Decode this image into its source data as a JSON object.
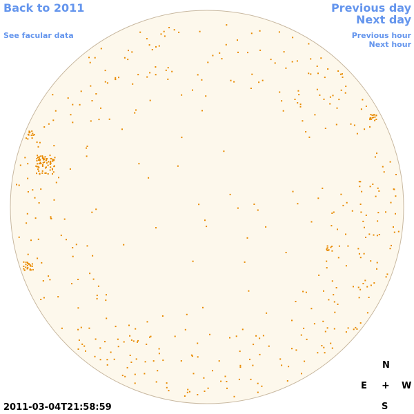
{
  "nav": {
    "back": "Back to 2011",
    "facular": "See facular data",
    "previous_day": "Previous day",
    "next_day": "Next day",
    "previous_hour": "Previous hour",
    "next_hour": "Next hour"
  },
  "compass": {
    "north": "N",
    "east": "E",
    "center": "+",
    "west": "W",
    "south": "S"
  },
  "timestamp": "2011-03-04T21:58:59",
  "colors": {
    "link": "#6495ed",
    "disk_fill": "#fdf8ec",
    "disk_edge": "#c8b8a0",
    "spot": "#e88a00"
  }
}
